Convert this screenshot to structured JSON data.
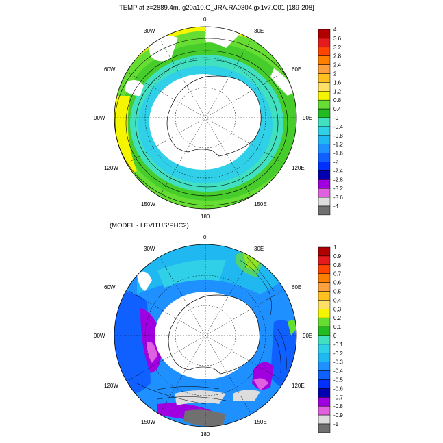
{
  "top_panel": {
    "title": "TEMP at z=2889.4m, g20a10.G_JRA.RA0304.gx1v7.C01 [189-208]",
    "colorbar": {
      "labels": [
        "4",
        "3.6",
        "3.2",
        "2.8",
        "2.4",
        "2",
        "1.6",
        "1.2",
        "0.8",
        "0.4",
        "-0",
        "-0.4",
        "-0.8",
        "-1.2",
        "-1.6",
        "-2",
        "-2.4",
        "-2.8",
        "-3.2",
        "-3.6",
        "-4"
      ],
      "colors": [
        "#b00000",
        "#e41a1c",
        "#ff4500",
        "#ff7f00",
        "#ffa040",
        "#ffc020",
        "#ffe066",
        "#f5f500",
        "#66dd33",
        "#22bb22",
        "#40e0c0",
        "#30d0e8",
        "#20b8f0",
        "#1e90ff",
        "#1060ff",
        "#0030ff",
        "#0000b0",
        "#a000e0",
        "#e060e0",
        "#dddddd",
        "#707070"
      ]
    },
    "lon_labels": [
      "0",
      "30E",
      "60E",
      "90E",
      "120E",
      "150E",
      "180",
      "150W",
      "120W",
      "90W",
      "60W",
      "30W"
    ]
  },
  "bottom_panel": {
    "title": "(MODEL - LEVITUS/PHC2)",
    "colorbar": {
      "labels": [
        "1",
        "0.9",
        "0.8",
        "0.7",
        "0.6",
        "0.5",
        "0.4",
        "0.3",
        "0.2",
        "0.1",
        "0",
        "-0.1",
        "-0.2",
        "-0.3",
        "-0.4",
        "-0.5",
        "-0.6",
        "-0.7",
        "-0.8",
        "-0.9",
        "-1"
      ],
      "colors": [
        "#b00000",
        "#e41a1c",
        "#ff4500",
        "#ff7f00",
        "#ffa040",
        "#ffc020",
        "#ffe066",
        "#f5f500",
        "#66dd33",
        "#22bb22",
        "#40e0c0",
        "#30d0e8",
        "#20b8f0",
        "#1e90ff",
        "#1060ff",
        "#0030ff",
        "#0000b0",
        "#a000e0",
        "#e060e0",
        "#dddddd",
        "#707070"
      ]
    },
    "lon_labels": [
      "0",
      "30E",
      "60E",
      "90E",
      "120E",
      "150E",
      "180",
      "150W",
      "120W",
      "90W",
      "60W",
      "30W"
    ]
  }
}
